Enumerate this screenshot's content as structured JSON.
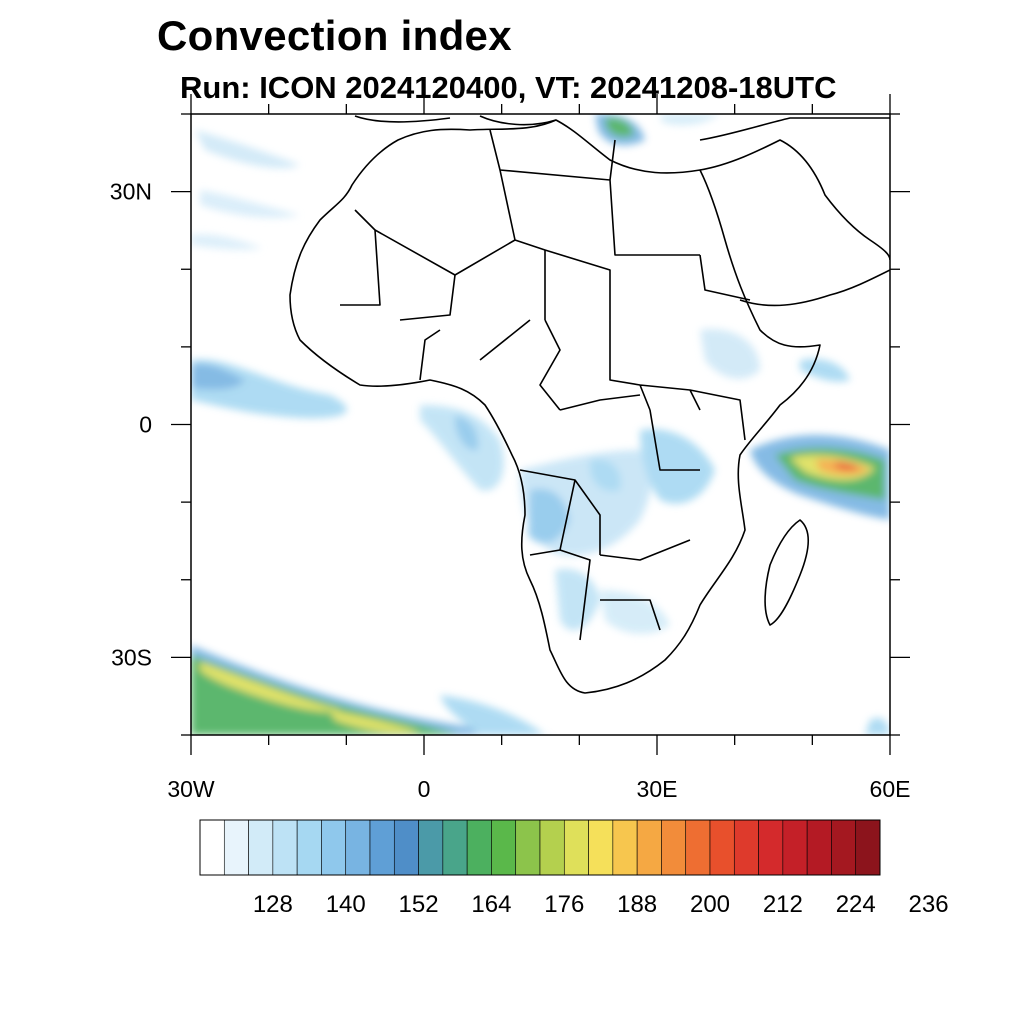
{
  "header": {
    "title": "Convection index",
    "subtitle": "Run: ICON 2024120400,  VT: 20241208-18UTC"
  },
  "map": {
    "lon_range": [
      -30,
      60
    ],
    "lat_range": [
      -40,
      40
    ],
    "lon_ticks": [
      {
        "value": -30,
        "label": "30W"
      },
      {
        "value": 0,
        "label": "0"
      },
      {
        "value": 30,
        "label": "30E"
      },
      {
        "value": 60,
        "label": "60E"
      }
    ],
    "lat_ticks": [
      {
        "value": 30,
        "label": "30N"
      },
      {
        "value": 0,
        "label": "0"
      },
      {
        "value": -30,
        "label": "30S"
      }
    ],
    "field_highlights": "strongest convection (orange/red, 200-224) east of Somalia near 50E 5S; green/yellow bands south-west of Africa near 35S 15W"
  },
  "colorbar": {
    "colors": [
      "#ffffff",
      "#e8f4fc",
      "#d2ebf8",
      "#bde2f5",
      "#a6d8f2",
      "#8fc8ec",
      "#78b4e2",
      "#5f9fd6",
      "#4f8ec8",
      "#4b9aa8",
      "#49a58a",
      "#4cb05f",
      "#5ab84a",
      "#8cc44b",
      "#b4d04e",
      "#dfe05a",
      "#f5e05a",
      "#f7c64e",
      "#f5a843",
      "#f28c3a",
      "#ee6e32",
      "#e8502c",
      "#de3a2c",
      "#d42a2c",
      "#c42028",
      "#b41a24",
      "#a41820",
      "#8c141c"
    ],
    "labels": [
      "128",
      "140",
      "152",
      "164",
      "176",
      "188",
      "200",
      "212",
      "224",
      "236"
    ]
  }
}
